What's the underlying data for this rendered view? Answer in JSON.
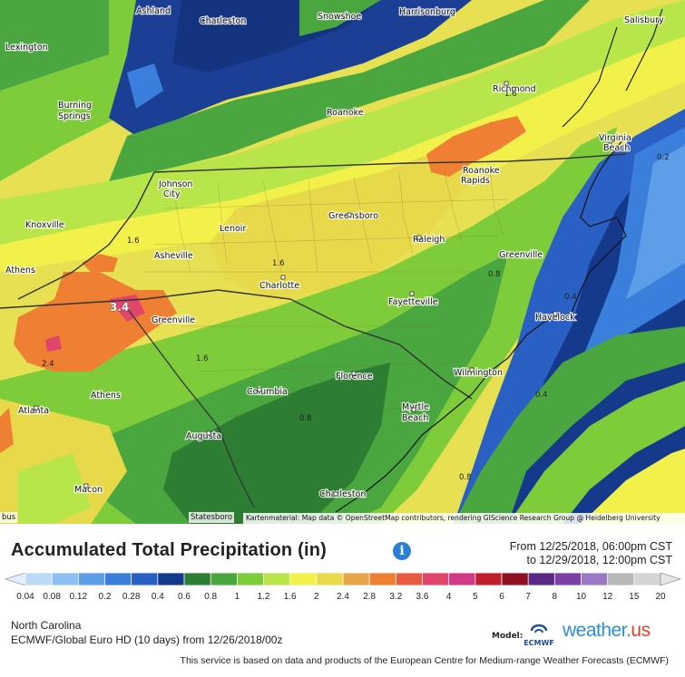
{
  "map": {
    "places": [
      {
        "name": "Ashland"
      },
      {
        "name": "Charleston"
      },
      {
        "name": "Snowshoe"
      },
      {
        "name": "Harrisonburg"
      },
      {
        "name": "Salisbury"
      },
      {
        "name": "Lexington"
      },
      {
        "name": "Burning"
      },
      {
        "name": "Springs"
      },
      {
        "name": "Richmond"
      },
      {
        "name": "Roanoke"
      },
      {
        "name": "Virginia"
      },
      {
        "name": "Beach"
      },
      {
        "name": "Johnson"
      },
      {
        "name": "City"
      },
      {
        "name": "Roanoke"
      },
      {
        "name": "Rapids"
      },
      {
        "name": "Knoxville"
      },
      {
        "name": "Lenoir"
      },
      {
        "name": "Greensboro"
      },
      {
        "name": "Raleigh"
      },
      {
        "name": "Asheville"
      },
      {
        "name": "Greenville"
      },
      {
        "name": "Athens"
      },
      {
        "name": "Charlotte"
      },
      {
        "name": "Fayetteville"
      },
      {
        "name": "Havelock"
      },
      {
        "name": "Greenville"
      },
      {
        "name": "Florence"
      },
      {
        "name": "Wilmington"
      },
      {
        "name": "Atlanta"
      },
      {
        "name": "Athens"
      },
      {
        "name": "Columbia"
      },
      {
        "name": "Myrtle"
      },
      {
        "name": "Beach"
      },
      {
        "name": "Augusta"
      },
      {
        "name": "Macon"
      },
      {
        "name": "Charleston"
      }
    ],
    "contour_labels": [
      "1.6",
      "0.2",
      "1.6",
      "1.6",
      "0.8",
      "0.4",
      "3.4",
      "2.4",
      "1.6",
      "0.8",
      "0.4",
      "0.8"
    ],
    "statesboro_label": "Statesboro",
    "edge_label": "bus",
    "attribution": "Kartenmaterial: Map data © OpenStreetMap contributors, rendering GIScience Research Group @ Heidelberg University"
  },
  "header": {
    "title": "Accumulated Total Precipitation (in)",
    "info_icon": "info-icon",
    "from_line": "From 12/25/2018, 06:00pm CST",
    "to_line": "to 12/29/2018, 12:00pm CST"
  },
  "legend": {
    "ticks": [
      "0.04",
      "0.08",
      "0.12",
      "0.2",
      "0.28",
      "0.4",
      "0.6",
      "0.8",
      "1",
      "1.2",
      "1.6",
      "2",
      "2.4",
      "2.8",
      "3.2",
      "3.6",
      "4",
      "5",
      "6",
      "7",
      "8",
      "10",
      "12",
      "15",
      "20"
    ],
    "colors": [
      "#bcd9f7",
      "#8ec0f1",
      "#5d9ee9",
      "#3b7fdc",
      "#2a5fc4",
      "#153a8c",
      "#2d7d32",
      "#4aa63f",
      "#7fcc3a",
      "#b8e64a",
      "#f2f04a",
      "#e7d94a",
      "#e8a64a",
      "#ef7f33",
      "#e85b40",
      "#e0466b",
      "#d23a86",
      "#c01f2c",
      "#8f1120",
      "#5b2a86",
      "#7b3fa6",
      "#9a7ac7",
      "#b8b8b8",
      "#d4d4d4"
    ]
  },
  "footer": {
    "region": "North Carolina",
    "model_line": "ECMWF/Global Euro HD  (10 days)  from 12/26/2018/00z",
    "model_label": "Model:",
    "ecmwf_label": "ECMWF",
    "brand_main": "weather.",
    "brand_us": "us",
    "service_text": "This service is based on data and products of the European Centre for Medium-range Weather Forecasts (ECMWF)"
  }
}
